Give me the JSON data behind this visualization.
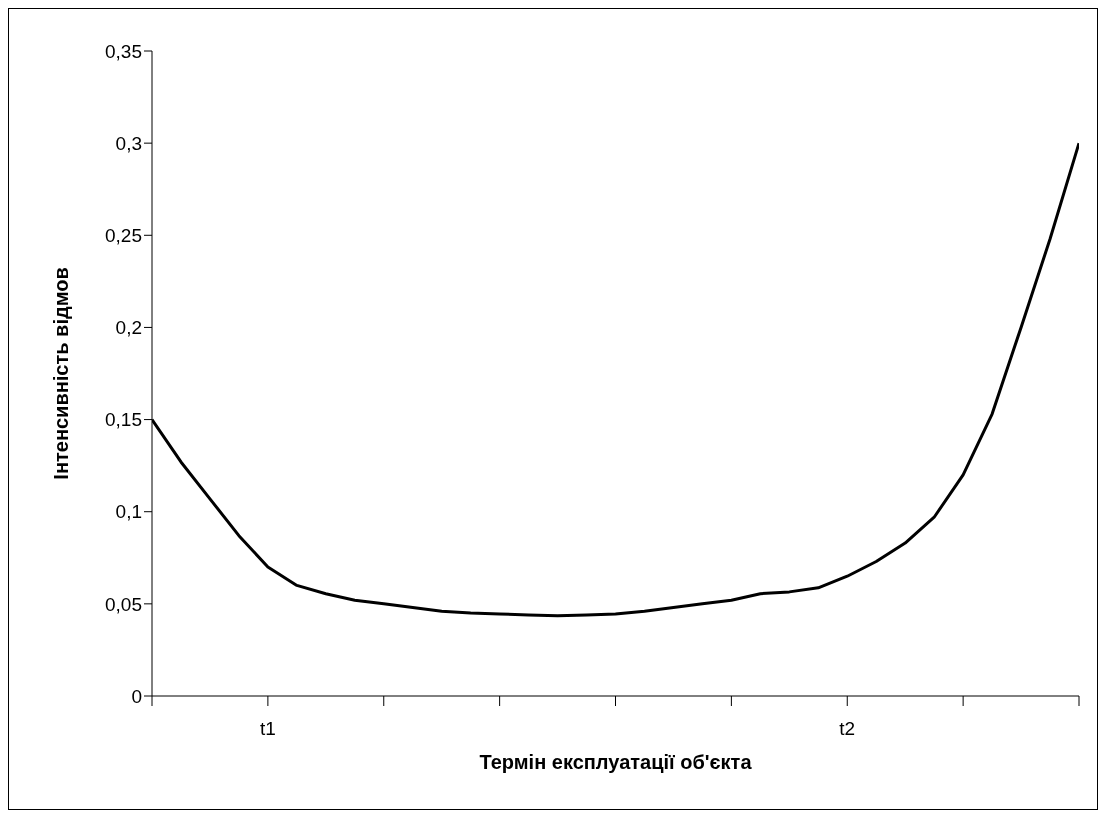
{
  "chart_data": {
    "type": "line",
    "xlabel": "Термін експлуатації об'єкта",
    "ylabel": "Інтенсивність відмов",
    "categories": [
      null,
      null,
      null,
      null,
      "t1",
      null,
      null,
      null,
      null,
      null,
      null,
      null,
      null,
      null,
      null,
      null,
      null,
      null,
      null,
      null,
      null,
      null,
      null,
      null,
      "t2",
      null,
      null,
      null,
      null,
      null,
      null,
      null,
      null
    ],
    "series": [
      {
        "color": "#000000",
        "values": [
          0.15,
          0.127,
          0.107,
          0.087,
          0.07,
          0.06,
          0.0555,
          0.052,
          0.05,
          0.048,
          0.046,
          0.045,
          0.0445,
          0.044,
          0.0435,
          0.044,
          0.0445,
          0.046,
          0.048,
          0.05,
          0.052,
          0.0555,
          0.0565,
          0.0587,
          0.065,
          0.073,
          0.083,
          0.097,
          0.12,
          0.153,
          0.2,
          0.248,
          0.3
        ]
      }
    ],
    "ylim": [
      0,
      0.35
    ],
    "yticks": [
      {
        "value": 0,
        "label": "0"
      },
      {
        "value": 0.05,
        "label": "0,05"
      },
      {
        "value": 0.1,
        "label": "0,1"
      },
      {
        "value": 0.15,
        "label": "0,15"
      },
      {
        "value": 0.2,
        "label": "0,2"
      },
      {
        "value": 0.25,
        "label": "0,25"
      },
      {
        "value": 0.3,
        "label": "0,3"
      },
      {
        "value": 0.35,
        "label": "0,35"
      }
    ],
    "grid": false,
    "marker": "none",
    "line_style": "solid"
  }
}
